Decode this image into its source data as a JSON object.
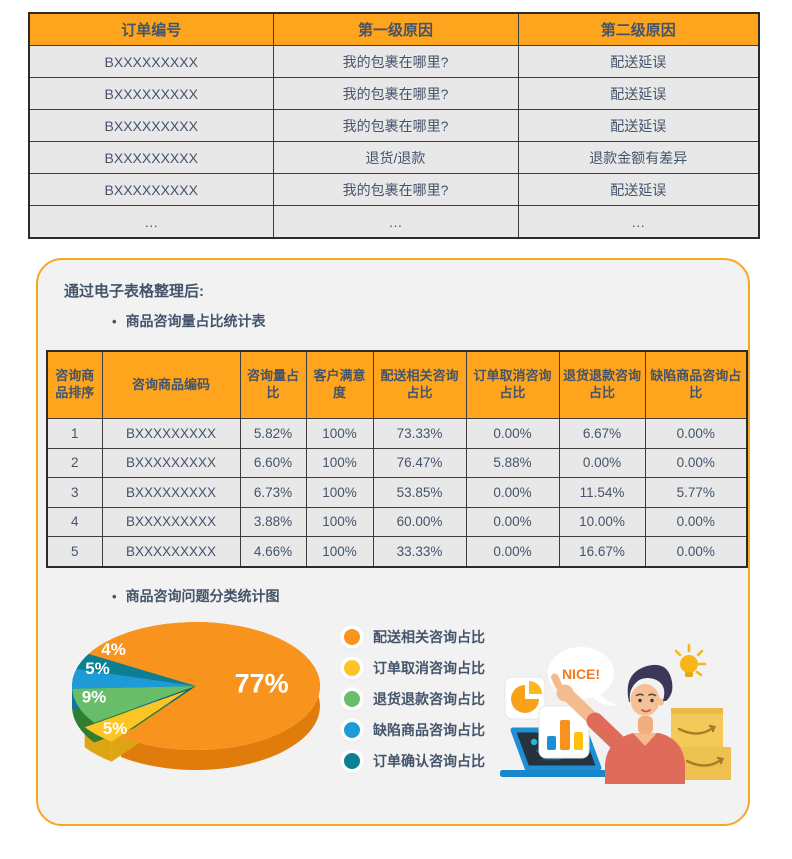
{
  "top_table": {
    "headers": [
      "订单编号",
      "第一级原因",
      "第二级原因"
    ],
    "rows": [
      [
        "BXXXXXXXXX",
        "我的包裹在哪里?",
        "配送延误"
      ],
      [
        "BXXXXXXXXX",
        "我的包裹在哪里?",
        "配送延误"
      ],
      [
        "BXXXXXXXXX",
        "我的包裹在哪里?",
        "配送延误"
      ],
      [
        "BXXXXXXXXX",
        "退货/退款",
        "退款金额有差异"
      ],
      [
        "BXXXXXXXXX",
        "我的包裹在哪里?",
        "配送延误"
      ],
      [
        "…",
        "…",
        "…"
      ]
    ]
  },
  "panel": {
    "title": "通过电子表格整理后:",
    "bullets": [
      "商品咨询量占比统计表",
      "商品咨询问题分类统计图"
    ],
    "stats_table": {
      "headers": [
        "咨询商品排序",
        "咨询商品编码",
        "咨询量占比",
        "客户满意度",
        "配送相关咨询占比",
        "订单取消咨询占比",
        "退货退款咨询占比",
        "缺陷商品咨询占比"
      ],
      "rows": [
        [
          "1",
          "BXXXXXXXXX",
          "5.82%",
          "100%",
          "73.33%",
          "0.00%",
          "6.67%",
          "0.00%"
        ],
        [
          "2",
          "BXXXXXXXXX",
          "6.60%",
          "100%",
          "76.47%",
          "5.88%",
          "0.00%",
          "0.00%"
        ],
        [
          "3",
          "BXXXXXXXXX",
          "6.73%",
          "100%",
          "53.85%",
          "0.00%",
          "11.54%",
          "5.77%"
        ],
        [
          "4",
          "BXXXXXXXXX",
          "3.88%",
          "100%",
          "60.00%",
          "0.00%",
          "10.00%",
          "0.00%"
        ],
        [
          "5",
          "BXXXXXXXXX",
          "4.66%",
          "100%",
          "33.33%",
          "0.00%",
          "16.67%",
          "0.00%"
        ]
      ]
    }
  },
  "chart_data": {
    "type": "pie",
    "style": "3d-exploded",
    "title": "商品咨询问题分类统计图",
    "start_angle_deg": 300,
    "legend_position": "right",
    "slices": [
      {
        "label": "配送相关咨询占比",
        "value": 77,
        "display": "77%",
        "color": "#F8941D",
        "side_color": "#E07C0C",
        "exploded": false
      },
      {
        "label": "订单取消咨询占比",
        "value": 5,
        "display": "5%",
        "color": "#FDC426",
        "side_color": "#DEA413",
        "exploded": true
      },
      {
        "label": "退货退款咨询占比",
        "value": 9,
        "display": "9%",
        "color": "#67BD68",
        "side_color": "#2E7D33",
        "exploded": false
      },
      {
        "label": "缺陷商品咨询占比",
        "value": 5,
        "display": "5%",
        "color": "#1E9BD7",
        "side_color": "#1173A3",
        "exploded": false
      },
      {
        "label": "订单确认咨询占比",
        "value": 4,
        "display": "4%",
        "color": "#0D7F93",
        "side_color": "#09616F",
        "exploded": false
      }
    ]
  },
  "illustration": {
    "speech_text": "NICE!"
  },
  "colors": {
    "accent_orange": "#FFA41D",
    "panel_border": "#F7A823",
    "table_text": "#44546A",
    "row_bg": "#E8E8E8"
  }
}
